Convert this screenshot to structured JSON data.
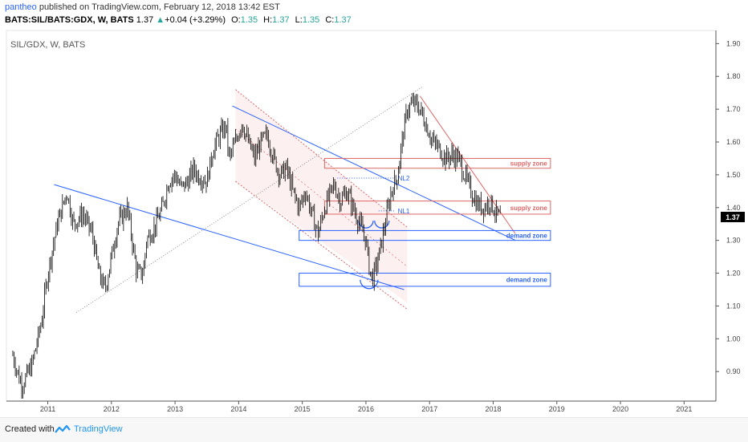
{
  "header": {
    "user": "pantheo",
    "published_text": " published on TradingView.com, February 12, 2018 13:42 EST",
    "symbol": "BATS:SIL/BATS:GDX, W, BATS",
    "last": "1.37",
    "arrow": "▲",
    "change": "+0.04 (+3.29%)",
    "o_label": "O:",
    "o": "1.35",
    "h_label": "H:",
    "h": "1.37",
    "l_label": "L:",
    "l": "1.35",
    "c_label": "C:",
    "c": "1.37"
  },
  "plot_title": "SIL/GDX, W, BATS",
  "footer": {
    "created": "Created with",
    "brand": "TradingView"
  },
  "colors": {
    "candles": "#000000",
    "resistance": "#e06666",
    "support": "#2962ff",
    "channel_fill": "#fbe3e3",
    "price_label_bg": "#000000"
  },
  "chart_data": {
    "type": "line",
    "title": "SIL/GDX, W, BATS",
    "xlabel": "",
    "ylabel": "",
    "x_ticks": [
      "2011",
      "2012",
      "2013",
      "2014",
      "2015",
      "2016",
      "2017",
      "2018",
      "2019",
      "2020",
      "2021"
    ],
    "y_ticks": [
      "0.90",
      "1.00",
      "1.10",
      "1.20",
      "1.30",
      "1.40",
      "1.50",
      "1.60",
      "1.70",
      "1.80",
      "1.90"
    ],
    "ylim": [
      0.81,
      1.94
    ],
    "xlim": [
      2010.35,
      2021.5
    ],
    "grid": false,
    "last_price_label": "1.37",
    "series": [
      {
        "x": [
          2010.45,
          2010.55,
          2010.6,
          2010.75,
          2010.9,
          2011.0,
          2011.15,
          2011.3,
          2011.4,
          2011.55,
          2011.7,
          2011.8,
          2011.9,
          2012.0,
          2012.1,
          2012.25,
          2012.4,
          2012.5,
          2012.55,
          2012.7,
          2012.8,
          2012.9,
          2013.0,
          2013.1,
          2013.2,
          2013.3,
          2013.35,
          2013.5,
          2013.6,
          2013.7,
          2013.8,
          2013.85,
          2013.95,
          2014.05,
          2014.15,
          2014.25,
          2014.35,
          2014.45,
          2014.55,
          2014.65,
          2014.75,
          2014.85,
          2014.95,
          2015.05,
          2015.15,
          2015.25,
          2015.35,
          2015.5,
          2015.6,
          2015.7,
          2015.8,
          2015.9,
          2016.0,
          2016.05,
          2016.1,
          2016.2,
          2016.3,
          2016.4,
          2016.5,
          2016.55,
          2016.65,
          2016.75,
          2016.85,
          2016.95,
          2017.05,
          2017.15,
          2017.25,
          2017.35,
          2017.45,
          2017.55,
          2017.65,
          2017.75,
          2017.85,
          2017.95,
          2018.05,
          2018.12
        ],
        "y": [
          0.95,
          0.88,
          0.86,
          0.92,
          1.05,
          1.2,
          1.35,
          1.45,
          1.35,
          1.38,
          1.32,
          1.2,
          1.15,
          1.25,
          1.35,
          1.4,
          1.2,
          1.2,
          1.3,
          1.35,
          1.4,
          1.48,
          1.5,
          1.46,
          1.48,
          1.52,
          1.5,
          1.48,
          1.58,
          1.62,
          1.65,
          1.55,
          1.6,
          1.66,
          1.6,
          1.55,
          1.6,
          1.62,
          1.55,
          1.5,
          1.52,
          1.45,
          1.4,
          1.45,
          1.38,
          1.32,
          1.4,
          1.47,
          1.42,
          1.45,
          1.4,
          1.35,
          1.3,
          1.22,
          1.18,
          1.25,
          1.35,
          1.45,
          1.5,
          1.58,
          1.7,
          1.72,
          1.7,
          1.65,
          1.6,
          1.58,
          1.55,
          1.56,
          1.55,
          1.5,
          1.45,
          1.41,
          1.4,
          1.42,
          1.38,
          1.37
        ]
      }
    ],
    "annotations": [
      {
        "text": "supply zone",
        "type": "zone",
        "y_range": [
          1.52,
          1.55
        ],
        "x_range": [
          2015.35,
          2018.9
        ]
      },
      {
        "text": "supply zone",
        "type": "zone",
        "y_range": [
          1.38,
          1.42
        ],
        "x_range": [
          2015.35,
          2018.9
        ]
      },
      {
        "text": "demand zone",
        "type": "zone",
        "y_range": [
          1.3,
          1.33
        ],
        "x_range": [
          2014.95,
          2018.9
        ]
      },
      {
        "text": "demand zone",
        "type": "zone",
        "y_range": [
          1.16,
          1.2
        ],
        "x_range": [
          2014.95,
          2018.9
        ]
      },
      {
        "text": "NL2",
        "type": "line",
        "y": 1.49
      },
      {
        "text": "NL1",
        "type": "line",
        "y": 1.39
      }
    ]
  }
}
